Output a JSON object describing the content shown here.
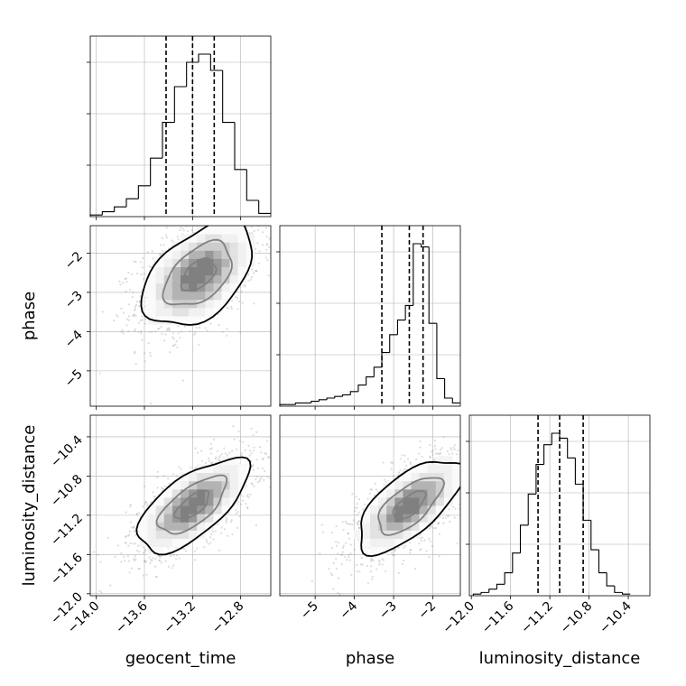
{
  "chart_data": {
    "type": "corner",
    "parameters": [
      "geocent_time",
      "phase",
      "luminosity_distance"
    ],
    "axis_labels": [
      "geocent_time",
      "phase",
      "luminosity_distance"
    ],
    "ranges": {
      "geocent_time": [
        -14.05,
        -12.55
      ],
      "phase": [
        -5.9,
        -1.3
      ],
      "luminosity_distance": [
        -12.02,
        -10.18
      ]
    },
    "ticks": {
      "geocent_time": [
        -14.0,
        -13.6,
        -13.2,
        -12.8
      ],
      "phase": [
        -5,
        -4,
        -3,
        -2
      ],
      "luminosity_distance": [
        -12.0,
        -11.6,
        -11.2,
        -10.8,
        -10.4
      ]
    },
    "tick_labels": {
      "geocent_time": [
        "−14.0",
        "−13.6",
        "−13.2",
        "−12.8"
      ],
      "phase": [
        "−5",
        "−4",
        "−3",
        "−2"
      ],
      "luminosity_distance": [
        "−12.0",
        "−11.6",
        "−11.2",
        "−10.8",
        "−10.4"
      ]
    },
    "quantiles": {
      "geocent_time": [
        -13.42,
        -13.2,
        -13.02
      ],
      "phase": [
        -3.3,
        -2.6,
        -2.25
      ],
      "luminosity_distance": [
        -11.32,
        -11.1,
        -10.86
      ]
    },
    "histograms": {
      "geocent_time": {
        "edges": [
          -14.05,
          -13.95,
          -13.85,
          -13.75,
          -13.65,
          -13.55,
          -13.45,
          -13.35,
          -13.25,
          -13.15,
          -13.05,
          -12.95,
          -12.85,
          -12.75,
          -12.65,
          -12.55
        ],
        "counts": [
          0.01,
          0.03,
          0.06,
          0.11,
          0.19,
          0.36,
          0.58,
          0.8,
          0.95,
          1.0,
          0.9,
          0.58,
          0.29,
          0.1,
          0.02
        ]
      },
      "phase": {
        "edges": [
          -5.9,
          -5.7,
          -5.5,
          -5.3,
          -5.1,
          -4.9,
          -4.7,
          -4.5,
          -4.3,
          -4.1,
          -3.9,
          -3.7,
          -3.5,
          -3.3,
          -3.1,
          -2.9,
          -2.7,
          -2.5,
          -2.3,
          -2.1,
          -1.9,
          -1.7,
          -1.5,
          -1.3
        ],
        "counts": [
          0.01,
          0.01,
          0.02,
          0.02,
          0.03,
          0.04,
          0.05,
          0.06,
          0.07,
          0.09,
          0.13,
          0.18,
          0.24,
          0.33,
          0.44,
          0.53,
          0.62,
          1.0,
          0.98,
          0.51,
          0.17,
          0.05,
          0.02
        ]
      },
      "luminosity_distance": {
        "edges": [
          -11.98,
          -11.9,
          -11.82,
          -11.74,
          -11.66,
          -11.58,
          -11.5,
          -11.42,
          -11.34,
          -11.26,
          -11.18,
          -11.1,
          -11.02,
          -10.94,
          -10.86,
          -10.78,
          -10.7,
          -10.62,
          -10.54,
          -10.46,
          -10.38
        ],
        "counts": [
          0.01,
          0.02,
          0.04,
          0.07,
          0.14,
          0.26,
          0.43,
          0.62,
          0.8,
          0.92,
          0.99,
          0.96,
          0.84,
          0.68,
          0.46,
          0.28,
          0.14,
          0.06,
          0.02,
          0.01
        ]
      }
    },
    "pairs": [
      {
        "x": "geocent_time",
        "y": "phase",
        "center": [
          -13.15,
          -2.55
        ],
        "cov": [
          [
            0.065,
            0.09
          ],
          [
            0.09,
            0.55
          ]
        ]
      },
      {
        "x": "geocent_time",
        "y": "luminosity_distance",
        "center": [
          -13.2,
          -11.1
        ],
        "cov": [
          [
            0.065,
            0.045
          ],
          [
            0.045,
            0.07
          ]
        ]
      },
      {
        "x": "phase",
        "y": "luminosity_distance",
        "center": [
          -2.6,
          -11.1
        ],
        "cov": [
          [
            0.55,
            0.13
          ],
          [
            0.13,
            0.07
          ]
        ]
      }
    ],
    "grid": true
  }
}
